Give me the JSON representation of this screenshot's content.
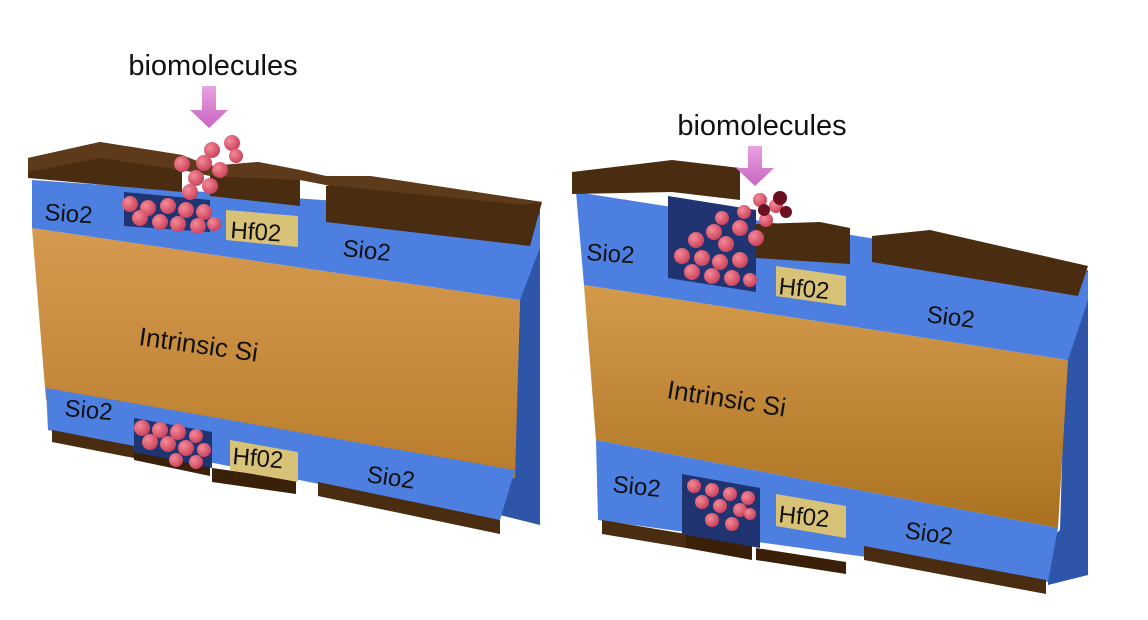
{
  "left_device": {
    "arrow_label": "biomolecules",
    "layer_labels": {
      "oxide_top_left": "Sio2",
      "hfo2_top": "Hf02",
      "oxide_top_right": "Sio2",
      "channel": "Intrinsic Si",
      "oxide_bottom_left": "Sio2",
      "hfo2_bottom": "Hf02",
      "oxide_bottom_right": "Sio2"
    }
  },
  "right_device": {
    "arrow_label": "biomolecules",
    "layer_labels": {
      "oxide_top_left": "Sio2",
      "hfo2_top": "Hf02",
      "oxide_top_right": "Sio2",
      "channel": "Intrinsic Si",
      "oxide_bottom_left": "Sio2",
      "hfo2_bottom": "Hf02",
      "oxide_bottom_right": "Sio2"
    }
  },
  "colors": {
    "gate_metal": "#4a2c10",
    "oxide_sio2": "#4f7ee0",
    "high_k_hfo2": "#d8c278",
    "silicon": "#c8903e",
    "biomolecule": "#e25a6e",
    "arrow": "#d67fd0"
  }
}
